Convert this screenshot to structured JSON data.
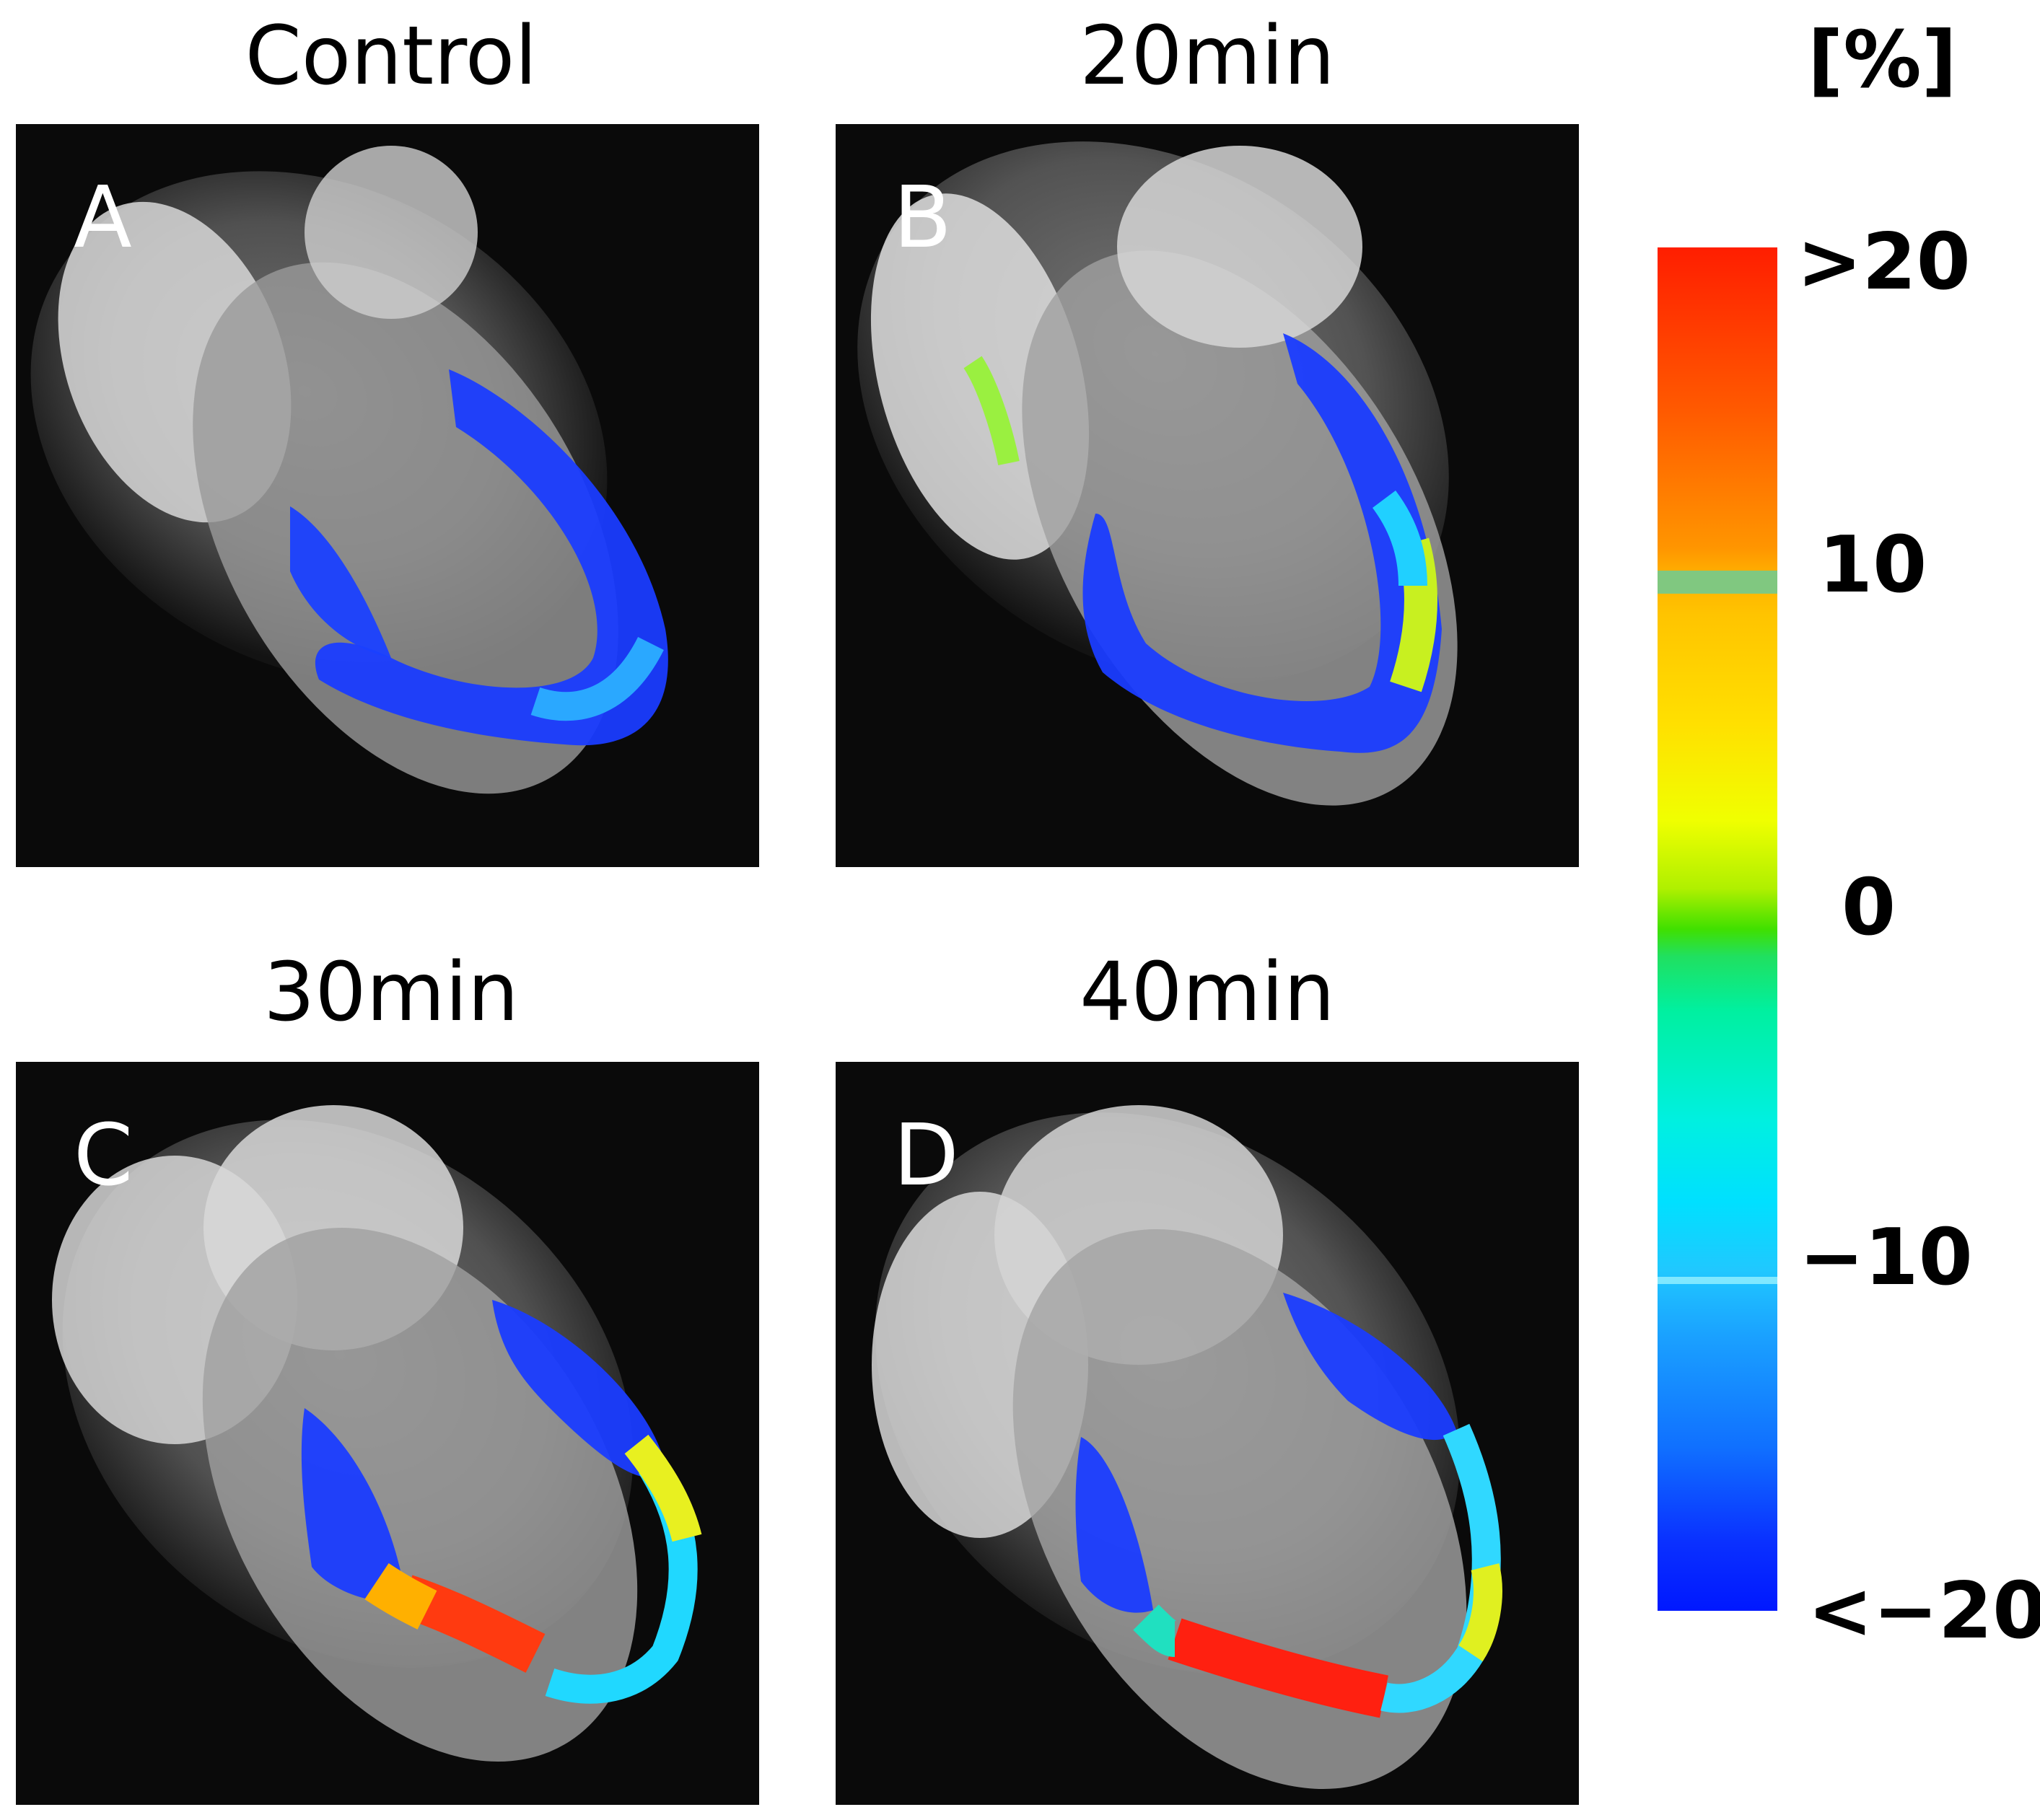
{
  "panels": [
    {
      "title": "Control",
      "letter": "A"
    },
    {
      "title": "20min",
      "letter": "B"
    },
    {
      "title": "30min",
      "letter": "C"
    },
    {
      "title": "40min",
      "letter": "D"
    }
  ],
  "colorbar": {
    "unit": "[%]",
    "ticks": [
      ">20",
      "10",
      "0",
      "−10",
      "<−20"
    ]
  }
}
